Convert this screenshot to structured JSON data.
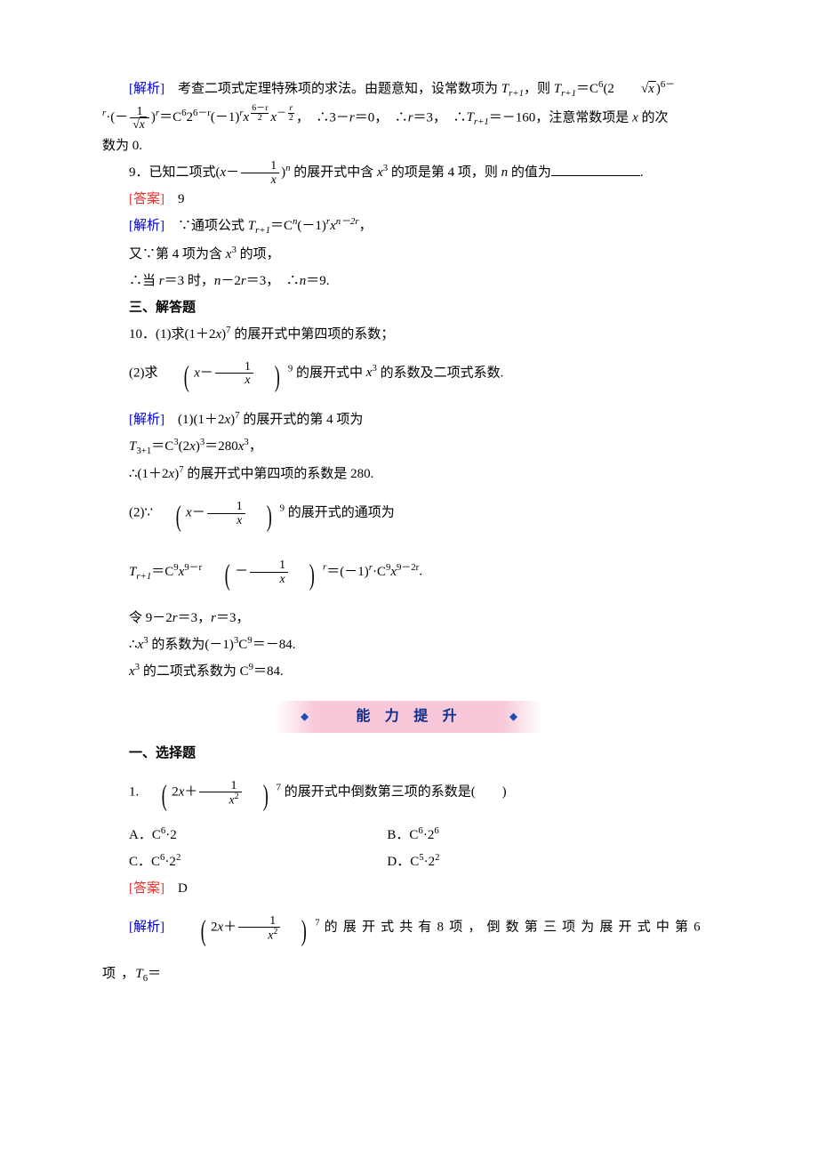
{
  "para1": {
    "label": "[解析]",
    "body_a": "　考查二项式定理特殊项的求法。由题意知，设常数项为 ",
    "term1_prefix": "T",
    "term1_sub": "r+1",
    "body_b": "，则 "
  },
  "eq1": {
    "lhs_T": "T",
    "lhs_sub": "r+1",
    "eq": "＝",
    "C": "C",
    "C_sup": "6",
    "paren_a": "(2",
    "sqrt_x": "x",
    "paren_b": ")",
    "exp1": "6－",
    "r": "r",
    "dot": "·",
    "neg": "(－",
    "frac_num": "1",
    "frac_den_sqrt": "x",
    "paren_c": ")",
    "exp_r": "r",
    "mid": "＝C",
    "mid_sup": "6",
    "two": "2",
    "two_exp": "6－r",
    "neg1": "(－1)",
    "neg1_exp": "r",
    "x": "x",
    "big_frac1_num": "6－r",
    "big_frac1_den": "2",
    "x2": "x",
    "minus": "－",
    "big_frac2_num": "r",
    "big_frac2_den": "2",
    "tail_a": "，　∴3－",
    "tail_b": "＝0，　∴",
    "tail_c": "＝3，　∴",
    "T2": "T",
    "T2_sub": "r+1",
    "tail_d": "＝－160，注意常数项是 ",
    "x_final": "x",
    "tail_e": " 的次"
  },
  "para1_tail": "数为 0.",
  "q9": {
    "num": "9．已知二项式(",
    "x": "x",
    "minus": "－",
    "frac_num": "1",
    "frac_den": "x",
    "rparen": ")",
    "n": "n",
    "mid": " 的展开式中含 ",
    "x3": "x",
    "x3_sup": "3",
    "tail": " 的项是第 4 项，则 ",
    "n2": "n",
    "tail2": " 的值为"
  },
  "ans9": {
    "label": "[答案]",
    "val": "　9"
  },
  "ana9": {
    "label": "[解析]",
    "l1a": "　∵通项公式 ",
    "T": "T",
    "Tsub": "r+1",
    "eq": "＝C",
    "Csup": "n",
    "neg1": "(－1)",
    "neg1_exp": "r",
    "x": "x",
    "x_exp": "n－2r",
    "comma": "，",
    "l2": "又∵第 4 项为含 ",
    "x3": "x",
    "x3_sup": "3",
    "l2b": " 的项，",
    "l3a": "∴当 ",
    "r": "r",
    "l3b": "＝3 时，",
    "n": "n",
    "l3c": "－2",
    "r2": "r",
    "l3d": "＝3，　∴",
    "n2": "n",
    "l3e": "＝9."
  },
  "sec3": "三、解答题",
  "q10": {
    "l1_a": "10．(1)求(1＋2",
    "x": "x",
    "l1_b": ")",
    "sup": "7",
    "l1_c": " 的展开式中第四项的系数；",
    "l2_a": "(2)求 ",
    "lparen": "",
    "inner_a": "x",
    "minus": "－",
    "frac_num": "1",
    "frac_den": "x",
    "rparen": "",
    "sup2": "9",
    "l2_b": " 的展开式中 ",
    "x3": "x",
    "x3_sup": "3",
    "l2_c": " 的系数及二项式系数."
  },
  "ana10": {
    "label": "[解析]",
    "l1a": "　(1)(1＋2",
    "x": "x",
    "l1b": ")",
    "sup": "7",
    "l1c": " 的展开式的第 4 项为",
    "l2a": "T",
    "l2sub": "3+1",
    "l2b": "＝C",
    "l2sup": "3",
    "l2c": "(2",
    "x2": "x",
    "l2d": ")",
    "l2e": "3",
    "l2f": "＝280",
    "x3": "x",
    "l2g": "3",
    "comma": "，",
    "l3a": "∴(1＋2",
    "x4": "x",
    "l3b": ")",
    "l3sup": "7",
    "l3c": " 的展开式中第四项的系数是 280.",
    "l4a": "(2)∵",
    "inner_a": "x",
    "minus": "－",
    "frac_num": "1",
    "frac_den": "x",
    "sup2": "9",
    "l4b": " 的展开式的通项为",
    "l5_T": "T",
    "l5_sub": "r+1",
    "l5_eq": "＝C",
    "l5_Csup": "9",
    "l5_x": "x",
    "l5_xexp": "9－r",
    "l5_neg_num": "1",
    "l5_neg_den": "x",
    "l5_r": "r",
    "l5_mid": "＝(－1)",
    "l5_mid_exp": "r",
    "l5_dot": "·C",
    "l5_Csup2": "9",
    "l5_x2": "x",
    "l5_x2exp": "9－2r",
    "l5_period": ".",
    "l6a": "令 9－2",
    "r": "r",
    "l6b": "＝3，",
    "r2": "r",
    "l6c": "＝3，",
    "l7a": "∴",
    "x5": "x",
    "l7sup": "3",
    "l7b": " 的系数为(－1)",
    "l7exp": "3",
    "l7c": "C",
    "l7Csup": "9",
    "l7d": "＝－84.",
    "l8_x": "x",
    "l8_sup": "3",
    "l8a": " 的二项式系数为 C",
    "l8Csup": "9",
    "l8b": "＝84."
  },
  "banner": "能 力 提 升",
  "sec_mc": "一、选择题",
  "q1": {
    "num": "1.",
    "two": "2",
    "x": "x",
    "plus": "＋",
    "frac_num": "1",
    "frac_den_x": "x",
    "frac_den_sup": "2",
    "sup": "7",
    "tail": " 的展开式中倒数第三项的系数是(　　)"
  },
  "opts": {
    "A_label": "A．",
    "A": "C",
    "A_sup": "6",
    "A_tail": "·2",
    "B_label": "B．",
    "B": "C",
    "B_sup": "6",
    "B_tail": "·2",
    "B_tail_sup": "6",
    "C_label": "C．",
    "C": "C",
    "C_sup": "6",
    "C_tail": "·2",
    "C_tail_sup": "2",
    "D_label": "D．",
    "D": "C",
    "D_sup": "5",
    "D_tail": "·2",
    "D_tail_sup": "2"
  },
  "ans1": {
    "label": "[答案]",
    "val": "　D"
  },
  "ana1": {
    "label": "[解析]",
    "body": "　",
    "two": "2",
    "x": "x",
    "plus": "＋",
    "frac_num": "1",
    "frac_den_x": "x",
    "frac_den_sup": "2",
    "sup": "7",
    "text": " 的 展 开 式 共 有 8 项 ， 倒 数 第 三 项 为 展 开 式 中 第 6 项 ，",
    "T": "T",
    "T_sub": "6",
    "eq": "＝"
  },
  "colors": {
    "red": "#e6302a",
    "blue": "#0000d0",
    "text": "#000000",
    "banner_bg": "#f8c7d9",
    "banner_text": "#0a2e8c"
  }
}
